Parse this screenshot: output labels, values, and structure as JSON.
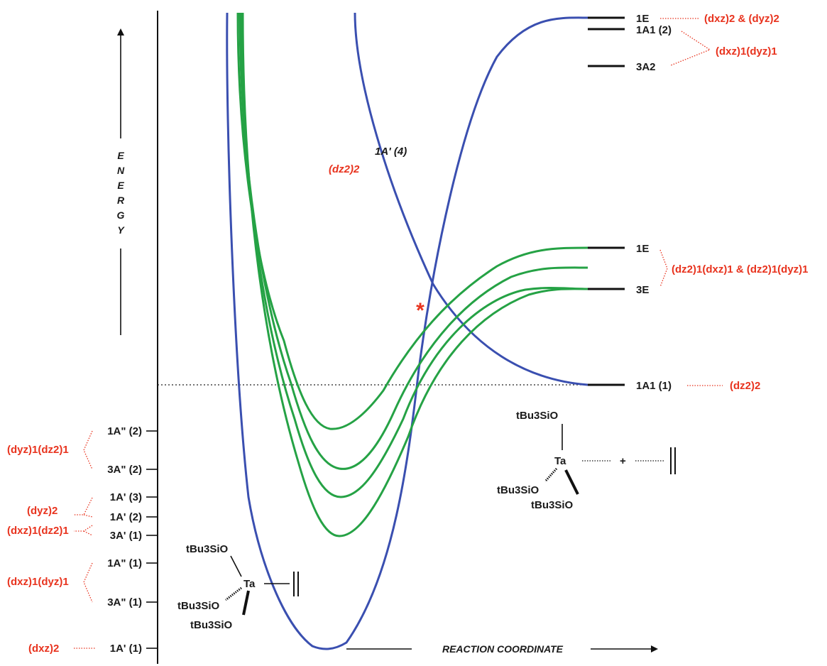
{
  "axes": {
    "energy": [
      "E",
      "N",
      "E",
      "R",
      "G",
      "Y"
    ],
    "reaction_coordinate": "REACTION COORDINATE"
  },
  "left_states": [
    {
      "id": "s1",
      "text": "1A\" (2)"
    },
    {
      "id": "s2",
      "text": "3A\" (2)"
    },
    {
      "id": "s3",
      "text": "1A' (3)"
    },
    {
      "id": "s4",
      "text": "1A' (2)"
    },
    {
      "id": "s5",
      "text": "3A' (1)"
    },
    {
      "id": "s6",
      "text": "1A\" (1)"
    },
    {
      "id": "s7",
      "text": "3A\" (1)"
    },
    {
      "id": "s8",
      "text": "1A' (1)"
    }
  ],
  "left_configs": [
    "(dyz)1(dz2)1",
    "(dyz)2",
    "(dxz)1(dz2)1",
    "(dxz)1(dyz)1",
    "(dxz)2"
  ],
  "right_states": [
    "1E",
    "1A1 (2)",
    "3A2",
    "1E",
    "3E",
    "1A1 (1)"
  ],
  "right_configs": [
    "(dxz)2 & (dyz)2",
    "(dxz)1(dyz)1",
    "(dz2)1(dxz)1 & (dz2)1(dyz)1",
    "(dz2)2"
  ],
  "curve_labels": {
    "state": "1A' (4)",
    "config": "(dz2)2",
    "crossing_mark": "*"
  },
  "molecule_left": {
    "groups": [
      "tBu3SiO",
      "tBu3SiO",
      "tBu3SiO"
    ],
    "metal": "Ta"
  },
  "molecule_right": {
    "groups": [
      "tBu3SiO",
      "tBu3SiO",
      "tBu3SiO"
    ],
    "metal": "Ta",
    "plus": "+"
  },
  "colors": {
    "blue_curve": "#3a4fb0",
    "green_curve": "#25a245",
    "config_text": "#e8331e"
  }
}
